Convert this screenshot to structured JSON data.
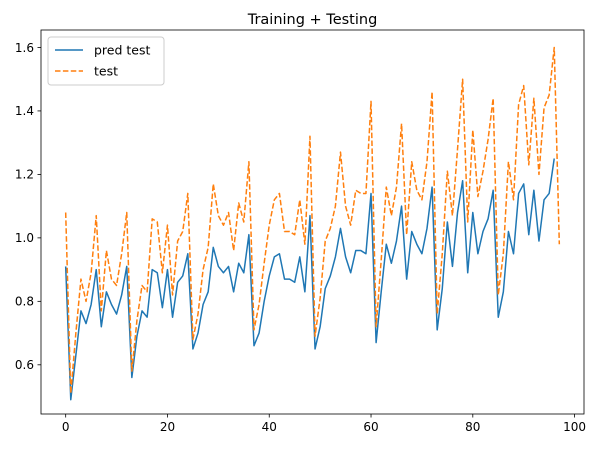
{
  "chart_data": {
    "type": "line",
    "title": "Training + Testing",
    "xlabel": "",
    "ylabel": "",
    "xlim": [
      -4.85,
      101.85
    ],
    "ylim": [
      0.445,
      1.655
    ],
    "xticks": [
      0,
      20,
      40,
      60,
      80,
      100
    ],
    "yticks": [
      0.6,
      0.8,
      1.0,
      1.2,
      1.4,
      1.6
    ],
    "grid": false,
    "legend_position": "top-left",
    "series": [
      {
        "name": "pred test",
        "color": "#1f77b4",
        "style": "solid",
        "x": [
          0,
          1,
          2,
          3,
          4,
          5,
          6,
          7,
          8,
          9,
          10,
          11,
          12,
          13,
          14,
          15,
          16,
          17,
          18,
          19,
          20,
          21,
          22,
          23,
          24,
          25,
          26,
          27,
          28,
          29,
          30,
          31,
          32,
          33,
          34,
          35,
          36,
          37,
          38,
          39,
          40,
          41,
          42,
          43,
          44,
          45,
          46,
          47,
          48,
          49,
          50,
          51,
          52,
          53,
          54,
          55,
          56,
          57,
          58,
          59,
          60,
          61,
          62,
          63,
          64,
          65,
          66,
          67,
          68,
          69,
          70,
          71,
          72,
          73,
          74,
          75,
          76,
          77,
          78,
          79,
          80,
          81,
          82,
          83,
          84,
          85,
          86,
          87,
          88,
          89,
          90,
          91,
          92,
          93,
          94,
          95,
          96
        ],
        "values": [
          0.91,
          0.49,
          0.63,
          0.77,
          0.73,
          0.79,
          0.9,
          0.72,
          0.83,
          0.79,
          0.76,
          0.82,
          0.91,
          0.56,
          0.69,
          0.77,
          0.75,
          0.9,
          0.89,
          0.78,
          0.9,
          0.75,
          0.86,
          0.88,
          0.95,
          0.65,
          0.7,
          0.79,
          0.83,
          0.97,
          0.91,
          0.89,
          0.91,
          0.83,
          0.92,
          0.89,
          1.01,
          0.66,
          0.7,
          0.8,
          0.88,
          0.94,
          0.95,
          0.87,
          0.87,
          0.86,
          0.94,
          0.83,
          1.07,
          0.65,
          0.72,
          0.84,
          0.88,
          0.94,
          1.03,
          0.94,
          0.89,
          0.96,
          0.96,
          0.95,
          1.14,
          0.67,
          0.83,
          0.98,
          0.92,
          0.99,
          1.1,
          0.87,
          1.02,
          0.98,
          0.95,
          1.03,
          1.16,
          0.71,
          0.84,
          1.05,
          0.91,
          1.08,
          1.18,
          0.89,
          1.08,
          0.95,
          1.02,
          1.06,
          1.15,
          0.75,
          0.83,
          1.02,
          0.95,
          1.14,
          1.17,
          1.01,
          1.15,
          0.99,
          1.12,
          1.14,
          1.25
        ]
      },
      {
        "name": "test",
        "color": "#ff7f0e",
        "style": "dashed",
        "x": [
          0,
          1,
          2,
          3,
          4,
          5,
          6,
          7,
          8,
          9,
          10,
          11,
          12,
          13,
          14,
          15,
          16,
          17,
          18,
          19,
          20,
          21,
          22,
          23,
          24,
          25,
          26,
          27,
          28,
          29,
          30,
          31,
          32,
          33,
          34,
          35,
          36,
          37,
          38,
          39,
          40,
          41,
          42,
          43,
          44,
          45,
          46,
          47,
          48,
          49,
          50,
          51,
          52,
          53,
          54,
          55,
          56,
          57,
          58,
          59,
          60,
          61,
          62,
          63,
          64,
          65,
          66,
          67,
          68,
          69,
          70,
          71,
          72,
          73,
          74,
          75,
          76,
          77,
          78,
          79,
          80,
          81,
          82,
          83,
          84,
          85,
          86,
          87,
          88,
          89,
          90,
          91,
          92,
          93,
          94,
          95,
          96,
          97
        ],
        "values": [
          1.08,
          0.51,
          0.7,
          0.87,
          0.8,
          0.89,
          1.07,
          0.77,
          0.96,
          0.87,
          0.85,
          0.95,
          1.08,
          0.58,
          0.74,
          0.85,
          0.83,
          1.06,
          1.05,
          0.89,
          1.04,
          0.82,
          0.99,
          1.02,
          1.14,
          0.68,
          0.76,
          0.9,
          0.97,
          1.17,
          1.07,
          1.04,
          1.08,
          0.96,
          1.11,
          1.05,
          1.24,
          0.71,
          0.79,
          0.92,
          1.04,
          1.12,
          1.14,
          1.02,
          1.02,
          1.01,
          1.12,
          0.98,
          1.32,
          0.69,
          0.81,
          0.99,
          1.03,
          1.1,
          1.27,
          1.1,
          1.04,
          1.15,
          1.14,
          1.14,
          1.43,
          0.72,
          0.93,
          1.16,
          1.07,
          1.16,
          1.36,
          1.01,
          1.24,
          1.15,
          1.12,
          1.24,
          1.46,
          0.76,
          0.95,
          1.21,
          1.07,
          1.28,
          1.5,
          1.05,
          1.34,
          1.13,
          1.21,
          1.31,
          1.44,
          0.82,
          0.95,
          1.24,
          1.12,
          1.42,
          1.48,
          1.23,
          1.44,
          1.2,
          1.41,
          1.45,
          1.6,
          0.98
        ]
      }
    ]
  }
}
